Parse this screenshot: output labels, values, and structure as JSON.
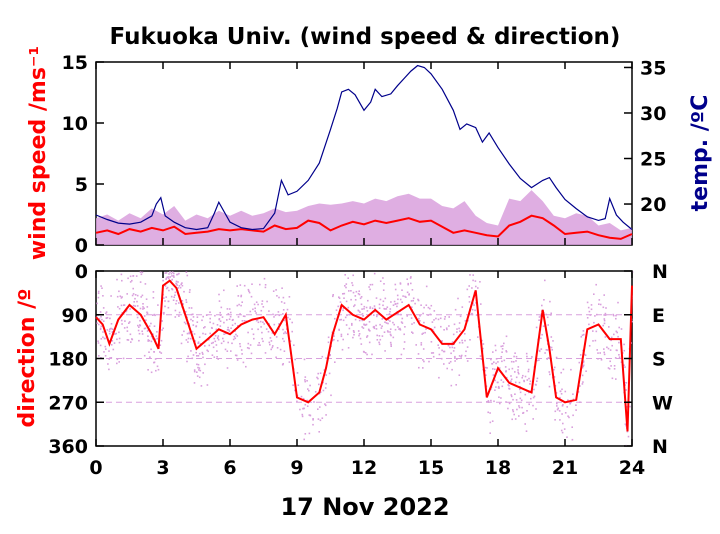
{
  "chart_data": [
    {
      "type": "line",
      "title": "Fukuoka Univ. (wind speed & direction)",
      "ylabel": "wind speed /ms⁻¹",
      "y2label": "temp. /ºC",
      "xlim": [
        0,
        24
      ],
      "ylim": [
        0,
        15
      ],
      "y2lim": [
        15.5,
        35.6
      ],
      "yticks": [
        0,
        5,
        10,
        15
      ],
      "y2ticks": [
        20,
        25,
        30,
        35
      ],
      "colors": {
        "wind_gust": "#d9a0dd",
        "wind_mean": "#ff0000",
        "temperature": "#00008b"
      },
      "series": [
        {
          "key": "wind_gust",
          "x": [
            0,
            0.5,
            1,
            1.5,
            2,
            2.5,
            3,
            3.5,
            4,
            4.5,
            5,
            5.5,
            6,
            6.5,
            7,
            7.5,
            8,
            8.5,
            9,
            9.5,
            10,
            10.5,
            11,
            11.5,
            12,
            12.5,
            13,
            13.5,
            14,
            14.5,
            15,
            15.5,
            16,
            16.5,
            17,
            17.5,
            18,
            18.5,
            19,
            19.5,
            20,
            20.5,
            21,
            21.5,
            22,
            22.5,
            23,
            23.5,
            24
          ],
          "values": [
            2.2,
            2.5,
            2.0,
            2.6,
            2.2,
            3.0,
            2.5,
            3.2,
            2.0,
            2.5,
            2.2,
            2.8,
            2.4,
            2.8,
            2.4,
            2.6,
            3.0,
            2.7,
            2.8,
            3.2,
            3.4,
            3.3,
            3.4,
            3.6,
            3.4,
            3.8,
            3.6,
            4.0,
            4.2,
            3.8,
            3.8,
            3.2,
            3.0,
            3.6,
            2.4,
            1.8,
            1.6,
            3.8,
            3.6,
            4.5,
            3.6,
            2.4,
            2.2,
            2.6,
            2.4,
            1.6,
            1.8,
            1.2,
            1.4
          ]
        },
        {
          "key": "wind_mean",
          "x": [
            0,
            0.5,
            1,
            1.5,
            2,
            2.5,
            3,
            3.5,
            4,
            4.5,
            5,
            5.5,
            6,
            6.5,
            7,
            7.5,
            8,
            8.5,
            9,
            9.5,
            10,
            10.5,
            11,
            11.5,
            12,
            12.5,
            13,
            13.5,
            14,
            14.5,
            15,
            15.5,
            16,
            16.5,
            17,
            17.5,
            18,
            18.5,
            19,
            19.5,
            20,
            20.5,
            21,
            21.5,
            22,
            22.5,
            23,
            23.5,
            24
          ],
          "values": [
            1.0,
            1.2,
            0.9,
            1.3,
            1.1,
            1.4,
            1.2,
            1.5,
            0.9,
            1.0,
            1.1,
            1.3,
            1.2,
            1.3,
            1.2,
            1.1,
            1.6,
            1.3,
            1.4,
            2.0,
            1.8,
            1.2,
            1.6,
            1.9,
            1.7,
            2.0,
            1.8,
            2.0,
            2.2,
            1.9,
            2.0,
            1.5,
            1.0,
            1.2,
            1.0,
            0.8,
            0.7,
            1.6,
            1.9,
            2.4,
            2.2,
            1.6,
            0.9,
            1.0,
            1.1,
            0.8,
            0.6,
            0.5,
            0.9
          ]
        },
        {
          "key": "temperature",
          "x": [
            0,
            0.5,
            1,
            1.5,
            2,
            2.5,
            2.7,
            2.9,
            3.1,
            3.5,
            4,
            4.5,
            5,
            5.3,
            5.5,
            6,
            6.5,
            7,
            7.5,
            8,
            8.3,
            8.6,
            9,
            9.5,
            10,
            10.5,
            10.8,
            11,
            11.3,
            11.6,
            12,
            12.3,
            12.5,
            12.8,
            13.2,
            13.5,
            13.8,
            14.1,
            14.4,
            14.7,
            15,
            15.5,
            16,
            16.3,
            16.6,
            17,
            17.3,
            17.6,
            18,
            18.5,
            19,
            19.5,
            20,
            20.3,
            20.6,
            21,
            21.5,
            22,
            22.5,
            22.8,
            23,
            23.3,
            23.6,
            24
          ],
          "values": [
            18.8,
            18.3,
            17.9,
            17.8,
            18.0,
            18.7,
            20.0,
            20.7,
            18.7,
            18.0,
            17.4,
            17.2,
            17.4,
            19.0,
            20.2,
            18.0,
            17.4,
            17.2,
            17.3,
            19.0,
            22.6,
            21.0,
            21.4,
            22.6,
            24.5,
            28.2,
            30.5,
            32.3,
            32.6,
            32.0,
            30.3,
            31.2,
            32.6,
            31.8,
            32.1,
            33.0,
            33.8,
            34.6,
            35.2,
            35.0,
            34.3,
            32.6,
            30.3,
            28.2,
            28.8,
            28.4,
            26.8,
            27.8,
            26.2,
            24.4,
            22.8,
            21.8,
            22.6,
            22.9,
            21.8,
            20.5,
            19.5,
            18.6,
            18.2,
            18.4,
            20.6,
            18.8,
            18.0,
            17.2
          ]
        }
      ]
    },
    {
      "type": "scatter",
      "ylabel": "direction /º",
      "xlabel": "17 Nov 2022",
      "xlim": [
        0,
        24
      ],
      "ylim": [
        360,
        0
      ],
      "yticks": [
        0,
        90,
        180,
        270,
        360
      ],
      "xticks": [
        0,
        3,
        6,
        9,
        12,
        15,
        18,
        21,
        24
      ],
      "compass_labels": [
        "N",
        "E",
        "S",
        "W",
        "N"
      ],
      "colors": {
        "direction_samples": "#d9a0dd",
        "direction_mean": "#ff0000"
      },
      "series": [
        {
          "key": "direction_mean",
          "x": [
            0,
            0.3,
            0.6,
            1,
            1.5,
            2,
            2.5,
            2.8,
            3,
            3.3,
            3.6,
            4,
            4.5,
            5,
            5.5,
            6,
            6.5,
            7,
            7.5,
            8,
            8.5,
            9,
            9.5,
            10,
            10.3,
            10.6,
            11,
            11.5,
            12,
            12.5,
            13,
            13.5,
            14,
            14.5,
            15,
            15.5,
            16,
            16.5,
            17,
            17.5,
            18,
            18.5,
            19,
            19.5,
            20,
            20.3,
            20.6,
            21,
            21.5,
            22,
            22.5,
            23,
            23.5,
            23.8,
            24
          ],
          "values": [
            95,
            110,
            150,
            100,
            70,
            90,
            130,
            160,
            30,
            20,
            35,
            90,
            160,
            140,
            120,
            130,
            110,
            100,
            95,
            130,
            90,
            260,
            270,
            250,
            200,
            130,
            70,
            90,
            100,
            80,
            100,
            85,
            70,
            110,
            120,
            150,
            150,
            120,
            40,
            260,
            200,
            230,
            240,
            250,
            80,
            160,
            260,
            270,
            265,
            120,
            110,
            140,
            140,
            330,
            30
          ]
        }
      ]
    }
  ]
}
